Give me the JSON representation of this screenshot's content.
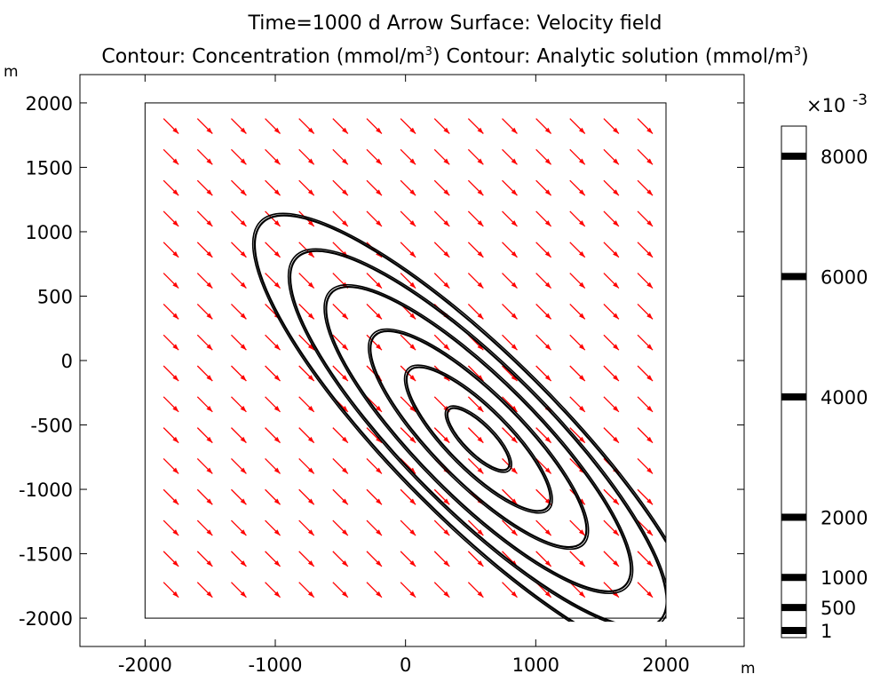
{
  "title": {
    "line1": "Time=1000 d   Arrow Surface: Velocity field",
    "line2_prefix": "Contour: Concentration (mmol/m",
    "line2_sup": "3",
    "line2_mid": ")  Contour: Analytic solution (mmol/m",
    "line2_sup2": "3",
    "line2_suffix": ")"
  },
  "colors": {
    "arrow": "#ff0000",
    "contour": "#000000",
    "axes": "#000000",
    "background": "#ffffff"
  },
  "chart_data": {
    "type": "contour",
    "x_unit": "m",
    "y_unit": "m",
    "xlim": [
      -2500,
      2600
    ],
    "ylim": [
      -2220,
      2220
    ],
    "x_ticks": [
      -2000,
      -1000,
      0,
      1000,
      2000
    ],
    "y_ticks": [
      2000,
      1500,
      1000,
      500,
      0,
      -500,
      -1000,
      -1500,
      -2000
    ],
    "domain": {
      "x": [
        -2000,
        2000
      ],
      "y": [
        -2000,
        2000
      ]
    },
    "arrow_field": {
      "name": "Velocity field",
      "direction": [
        1,
        -1
      ],
      "grid_x": [
        -1800,
        -1540,
        -1280,
        -1020,
        -760,
        -500,
        -240,
        20,
        280,
        540,
        800,
        1060,
        1320,
        1580,
        1840
      ],
      "grid_y": [
        1820,
        1580,
        1340,
        1100,
        860,
        620,
        380,
        140,
        -100,
        -340,
        -580,
        -820,
        -1060,
        -1300,
        -1540,
        -1780
      ]
    },
    "contours": {
      "center": [
        560,
        -610
      ],
      "orientation_deg": -45,
      "levels_semi_axes_m": [
        {
          "semi_major": 320,
          "semi_minor": 110
        },
        {
          "semi_major": 750,
          "semi_minor": 230
        },
        {
          "semi_major": 1130,
          "semi_minor": 335
        },
        {
          "semi_major": 1600,
          "semi_minor": 450
        },
        {
          "semi_major": 1980,
          "semi_minor": 545
        },
        {
          "semi_major": 2360,
          "semi_minor": 625
        }
      ]
    },
    "colorbar": {
      "multiplier": "×10",
      "multiplier_exp": "-3",
      "levels": [
        8000,
        6000,
        4000,
        2000,
        1000,
        500,
        1
      ],
      "labels": [
        "8000",
        "6000",
        "4000",
        "2000",
        "1000",
        "500",
        "1"
      ],
      "range": [
        0,
        8500
      ]
    }
  }
}
